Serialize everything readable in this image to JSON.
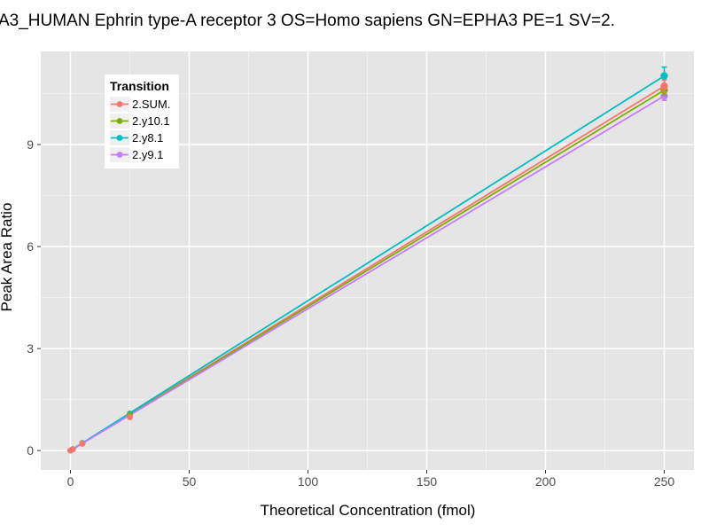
{
  "page": {
    "background": "#FFFFFF"
  },
  "chart_data": {
    "type": "line",
    "title": "A3_HUMAN Ephrin type-A receptor 3 OS=Homo sapiens GN=EPHA3 PE=1 SV=2.",
    "xlabel": "Theoretical Concentration (fmol)",
    "ylabel": "Peak Area Ratio",
    "x_ticks": [
      0,
      50,
      100,
      150,
      200,
      250
    ],
    "x_minor_gridlines": [
      25,
      75,
      125,
      175,
      225
    ],
    "y_ticks": [
      0,
      3,
      6,
      9
    ],
    "y_minor_gridlines": [
      1.5,
      4.5,
      7.5,
      10.5
    ],
    "xlim": [
      -12.5,
      262.5
    ],
    "ylim": [
      -0.57,
      11.74
    ],
    "grid": true,
    "panel_bg": "#E5E5E5",
    "grid_major_color": "#FFFFFF",
    "grid_minor_color": "#F2F2F2",
    "tick_label_color": "#4D4D4D",
    "tick_mark_color": "#333333",
    "legend": {
      "title": "Transition",
      "position": "top-left-inset",
      "bg": "#FFFFFF",
      "key_bg": "#F0F0F0"
    },
    "series": [
      {
        "name": "2.SUM.",
        "color": "#F8766D",
        "x": [
          0,
          1,
          5,
          25,
          250
        ],
        "y": [
          0,
          0.04,
          0.21,
          0.98,
          10.72
        ],
        "line": [
          [
            0,
            0
          ],
          [
            250,
            10.72
          ]
        ],
        "err_x": 250,
        "err_lo": 10.55,
        "err_hi": 10.9
      },
      {
        "name": "2.y10.1",
        "color": "#7CAE00",
        "x": [
          0,
          1,
          5,
          25,
          250
        ],
        "y": [
          0,
          0.04,
          0.21,
          1.05,
          10.6
        ],
        "line": [
          [
            0,
            0
          ],
          [
            250,
            10.6
          ]
        ],
        "err_x": 250,
        "err_lo": 10.45,
        "err_hi": 10.75
      },
      {
        "name": "2.y8.1",
        "color": "#00BFC4",
        "x": [
          0,
          1,
          5,
          25,
          250
        ],
        "y": [
          0,
          0.04,
          0.22,
          1.09,
          11.02
        ],
        "line": [
          [
            0,
            0
          ],
          [
            250,
            11.02
          ]
        ],
        "err_x": 250,
        "err_lo": 10.75,
        "err_hi": 11.28
      },
      {
        "name": "2.y9.1",
        "color": "#C77CFF",
        "x": [
          0,
          1,
          5,
          25,
          250
        ],
        "y": [
          0,
          0.04,
          0.2,
          1.03,
          10.43
        ],
        "line": [
          [
            0,
            0
          ],
          [
            250,
            10.43
          ]
        ],
        "err_x": 250,
        "err_lo": 10.3,
        "err_hi": 10.58
      }
    ]
  }
}
